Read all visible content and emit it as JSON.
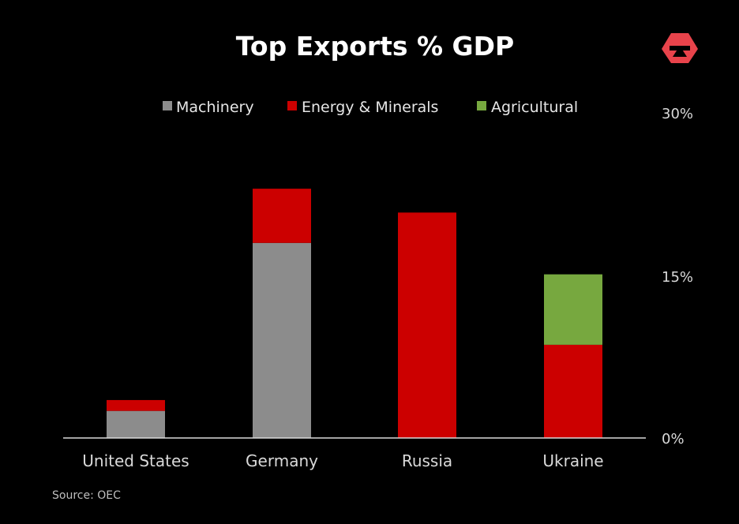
{
  "chart_data": {
    "type": "bar",
    "stacked": true,
    "title": "Top Exports % GDP",
    "categories": [
      "United States",
      "Germany",
      "Russia",
      "Ukraine"
    ],
    "series": [
      {
        "name": "Machinery",
        "color": "#8c8c8c",
        "values": [
          2.5,
          18.0,
          0,
          0
        ]
      },
      {
        "name": "Energy & Minerals",
        "color": "#cc0000",
        "values": [
          1.0,
          5.0,
          20.8,
          8.6
        ]
      },
      {
        "name": "Agricultural",
        "color": "#77a83f",
        "values": [
          0,
          0,
          0,
          6.5
        ]
      }
    ],
    "ylim": [
      0,
      30
    ],
    "yticks": [
      "0%",
      "15%",
      "30%"
    ],
    "yaxis_position": "right",
    "grid": false,
    "legend_position": "top",
    "xlabel": "",
    "ylabel": ""
  },
  "source": "Source: OEC",
  "logo": {
    "name": "logo-icon",
    "color": "#e8434b"
  }
}
